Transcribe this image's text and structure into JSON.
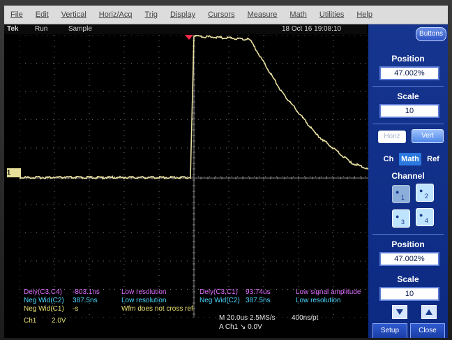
{
  "menubar": {
    "items": [
      "File",
      "Edit",
      "Vertical",
      "Horiz/Acq",
      "Trig",
      "Display",
      "Cursors",
      "Measure",
      "Math",
      "Utilities",
      "Help"
    ]
  },
  "status": {
    "brand": "Tek",
    "run_state": "Run",
    "mode": "Sample",
    "datetime": "18 Oct 16 19:08:10"
  },
  "ground_marker": "1",
  "readouts": {
    "left": [
      {
        "label": "Dely(C3,C4)",
        "value": "-803.1ns",
        "note": "Low resolution"
      },
      {
        "label": "Neg Wid(C2)",
        "value": "387.5ns",
        "note": "Low resolution"
      },
      {
        "label": "Neg Wid(C1)",
        "value": "-s",
        "note": "Wfm does not cross ref"
      }
    ],
    "right": [
      {
        "label": "Dely(C3,C1)",
        "value": "93.74us",
        "note": "Low signal amplitude"
      },
      {
        "label": "Neg Wid(C2)",
        "value": "387.5ns",
        "note": "Low resolution"
      }
    ],
    "channel": "Ch1",
    "volts_div": "2.0V",
    "timebase": "M 20.0us 2.5MS/s",
    "record": "400ns/pt",
    "trigger": "A  Ch1  ↘  0.0V"
  },
  "panel": {
    "buttons_label": "Buttons",
    "position_label": "Position",
    "position_value": "47.002%",
    "scale_label": "Scale",
    "scale_value": "10",
    "horiz_label": "Horiz",
    "vert_label": "Vert",
    "tabs": [
      "Ch",
      "Math",
      "Ref"
    ],
    "channel_label": "Channel",
    "channel_buttons": [
      "1",
      "2",
      "3",
      "4"
    ],
    "position2_label": "Position",
    "position2_value": "47.002%",
    "scale2_label": "Scale",
    "scale2_value": "10",
    "setup_label": "Setup",
    "close_label": "Close"
  },
  "colors": {
    "trace": "#e8e0a0",
    "panel": "#16358f",
    "magenta": "#e070ff",
    "cyan": "#4ad8ff"
  },
  "chart_data": {
    "type": "line",
    "series": [
      {
        "x": [
          -5,
          -0.1,
          0,
          1.6,
          2.5,
          3.5,
          4.5,
          5
        ],
        "y": [
          0,
          0,
          4.25,
          4.15,
          2.6,
          1.3,
          0.45,
          0.25
        ]
      }
    ],
    "xlim": [
      -5,
      5
    ],
    "ylim": [
      -4,
      4.3
    ],
    "grid": true
  }
}
